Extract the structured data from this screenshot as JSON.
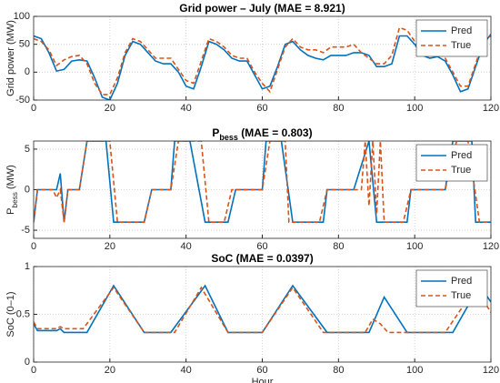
{
  "chart_data": [
    {
      "type": "line",
      "title": "Grid power – July (MAE = 8.921)",
      "y_label": "Grid power (MW)",
      "xlim": [
        0,
        120
      ],
      "xticks": [
        0,
        20,
        40,
        60,
        80,
        100,
        120
      ],
      "ylim": [
        -50,
        100
      ],
      "yticks": [
        -50,
        0,
        50,
        100
      ],
      "grid": true,
      "legend": "northeast",
      "series": [
        {
          "name": "Pred",
          "color": "#0072BD",
          "style": "solid",
          "x": [
            0,
            2,
            4,
            6,
            8,
            10,
            12,
            14,
            16,
            18,
            20,
            22,
            24,
            26,
            28,
            30,
            32,
            34,
            36,
            38,
            40,
            42,
            44,
            46,
            48,
            50,
            52,
            54,
            56,
            58,
            60,
            62,
            64,
            66,
            68,
            70,
            72,
            74,
            76,
            78,
            80,
            82,
            84,
            86,
            88,
            90,
            92,
            94,
            96,
            98,
            100,
            102,
            104,
            106,
            108,
            110,
            112,
            114,
            116,
            118,
            120
          ],
          "values": [
            65,
            60,
            35,
            2,
            5,
            20,
            22,
            20,
            -10,
            -45,
            -50,
            -20,
            30,
            55,
            50,
            35,
            20,
            15,
            15,
            0,
            -25,
            -30,
            10,
            55,
            50,
            40,
            25,
            20,
            20,
            -5,
            -30,
            -25,
            10,
            50,
            55,
            40,
            30,
            25,
            22,
            30,
            30,
            30,
            35,
            35,
            30,
            10,
            10,
            15,
            65,
            65,
            50,
            30,
            25,
            28,
            20,
            -5,
            -35,
            -30,
            10,
            50,
            68
          ]
        },
        {
          "name": "True",
          "color": "#D95319",
          "style": "dashed",
          "x": [
            0,
            2,
            4,
            6,
            8,
            10,
            12,
            14,
            16,
            18,
            20,
            22,
            24,
            26,
            28,
            30,
            32,
            34,
            36,
            38,
            40,
            42,
            44,
            46,
            48,
            50,
            52,
            54,
            56,
            58,
            60,
            62,
            64,
            66,
            68,
            70,
            72,
            74,
            76,
            78,
            80,
            82,
            84,
            86,
            88,
            90,
            92,
            94,
            96,
            98,
            100,
            102,
            104,
            106,
            108,
            110,
            112,
            114,
            116,
            118,
            120
          ],
          "values": [
            60,
            55,
            40,
            12,
            22,
            28,
            30,
            15,
            -20,
            -40,
            -40,
            -10,
            35,
            60,
            55,
            40,
            25,
            25,
            25,
            5,
            -15,
            -20,
            20,
            60,
            55,
            45,
            30,
            25,
            25,
            0,
            -20,
            -35,
            5,
            45,
            60,
            45,
            40,
            40,
            35,
            45,
            45,
            45,
            50,
            35,
            25,
            15,
            15,
            30,
            80,
            75,
            55,
            35,
            30,
            35,
            25,
            0,
            -25,
            -25,
            15,
            55,
            65
          ]
        }
      ]
    },
    {
      "type": "line",
      "title": [
        "P",
        "bess",
        " (MAE = 0.803)"
      ],
      "y_label": [
        "P",
        "bess",
        " (MW)"
      ],
      "xlim": [
        0,
        120
      ],
      "xticks": [
        0,
        20,
        40,
        60,
        80,
        100,
        120
      ],
      "ylim": [
        -6,
        6
      ],
      "yticks": [
        -5,
        0,
        5
      ],
      "grid": true,
      "legend": "northeast",
      "series": [
        {
          "name": "Pred",
          "color": "#0072BD",
          "style": "solid",
          "x": [
            0,
            1,
            6,
            7,
            8,
            9,
            12,
            14,
            19,
            21,
            29,
            31,
            36,
            37,
            41,
            45,
            51,
            53,
            60,
            61,
            65,
            68,
            76,
            77,
            84,
            88,
            90,
            98,
            99,
            108,
            110,
            115,
            116,
            120
          ],
          "values": [
            -4,
            0,
            0,
            2,
            -4,
            0,
            0,
            6,
            6,
            -4,
            -4,
            0,
            0,
            6,
            6,
            -4,
            -4,
            0,
            0,
            6,
            6,
            -4,
            -4,
            0,
            0,
            6,
            -4,
            -4,
            0,
            0,
            6,
            6,
            -4,
            -4
          ]
        },
        {
          "name": "True",
          "color": "#D95319",
          "style": "dashed",
          "x": [
            0,
            1,
            5,
            6,
            7,
            8,
            9,
            12,
            14,
            20,
            22,
            29,
            31,
            36,
            38,
            44,
            46,
            50,
            52,
            60,
            62,
            66,
            67,
            75,
            77,
            86,
            87,
            88,
            89,
            90,
            91,
            92,
            97,
            99,
            108,
            111,
            114,
            117,
            120
          ],
          "values": [
            -4,
            0,
            0,
            -1,
            0,
            -4,
            0,
            0,
            6,
            6,
            -4,
            -4,
            0,
            0,
            6,
            6,
            -4,
            -4,
            0,
            0,
            6,
            6,
            -4,
            -4,
            0,
            0,
            6,
            -2,
            6,
            -3,
            6,
            -4,
            -4,
            0,
            0,
            6,
            6,
            -4,
            -4
          ]
        }
      ]
    },
    {
      "type": "line",
      "title": "SoC (MAE = 0.0397)",
      "y_label": "SoC (0–1)",
      "x_label": "Hour",
      "xlim": [
        0,
        120
      ],
      "xticks": [
        0,
        20,
        40,
        60,
        80,
        100,
        120
      ],
      "ylim": [
        0,
        1
      ],
      "yticks": [
        0,
        0.5,
        1
      ],
      "grid": true,
      "legend": "northeast",
      "series": [
        {
          "name": "Pred",
          "color": "#0072BD",
          "style": "solid",
          "x": [
            0,
            1,
            6,
            7,
            8,
            14,
            21,
            29,
            36,
            45,
            51,
            60,
            68,
            77,
            88,
            92,
            98,
            110,
            117,
            120
          ],
          "values": [
            0.4,
            0.33,
            0.33,
            0.35,
            0.31,
            0.31,
            0.8,
            0.31,
            0.31,
            0.8,
            0.31,
            0.31,
            0.8,
            0.31,
            0.31,
            0.68,
            0.31,
            0.31,
            0.8,
            0.63
          ]
        },
        {
          "name": "True",
          "color": "#D95319",
          "style": "dashed",
          "x": [
            0,
            1,
            6,
            7,
            8,
            13,
            21,
            29,
            37,
            44,
            51,
            60,
            68,
            76,
            87,
            89,
            91,
            93,
            98,
            108,
            116,
            120
          ],
          "values": [
            0.42,
            0.35,
            0.35,
            0.37,
            0.35,
            0.35,
            0.78,
            0.31,
            0.31,
            0.78,
            0.31,
            0.31,
            0.78,
            0.31,
            0.31,
            0.45,
            0.4,
            0.31,
            0.31,
            0.31,
            0.78,
            0.52
          ]
        }
      ]
    }
  ]
}
